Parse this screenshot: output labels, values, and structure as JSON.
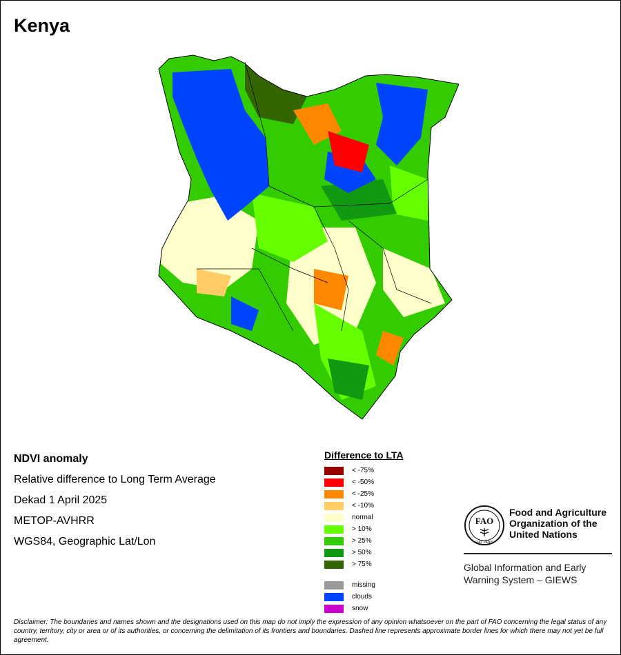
{
  "title": "Kenya",
  "info_lines": [
    "NDVI anomaly",
    "Relative difference to Long Term Average",
    "Dekad 1 April 2025",
    "METOP-AVHRR",
    "WGS84, Geographic Lat/Lon"
  ],
  "legend": {
    "title": "Difference to LTA",
    "classes": [
      {
        "label": "< -75%",
        "color": "#990000"
      },
      {
        "label": "< -50%",
        "color": "#ff0000"
      },
      {
        "label": "< -25%",
        "color": "#ff8800"
      },
      {
        "label": "< -10%",
        "color": "#ffcc66"
      },
      {
        "label": "normal",
        "color": "#ffffcc"
      },
      {
        "label": "> 10%",
        "color": "#66ff00"
      },
      {
        "label": "> 25%",
        "color": "#33cc00"
      },
      {
        "label": "> 50%",
        "color": "#119911"
      },
      {
        "label": "> 75%",
        "color": "#336600"
      }
    ],
    "extra": [
      {
        "label": "missing",
        "color": "#999999"
      },
      {
        "label": "clouds",
        "color": "#0044ff"
      },
      {
        "label": "snow",
        "color": "#cc00cc"
      }
    ]
  },
  "org": {
    "name_lines": [
      "Food and Agriculture",
      "Organization of the",
      "United Nations"
    ],
    "logo_letters": "FAO",
    "logo_motto": "FIAT PANIS",
    "program_lines": [
      "Global Information and Early",
      "Warning System – GIEWS"
    ]
  },
  "disclaimer": "Disclaimer: The boundaries and names shown and the designations used on this map do not imply the expression of any opinion whatsoever on the part of FAO concerning the legal status of any country, territory, city or area or of its authorities, or concerning the delimitation of its frontiers and boundaries. Dashed line represents approximate border lines for which there may not yet be full agreement."
}
